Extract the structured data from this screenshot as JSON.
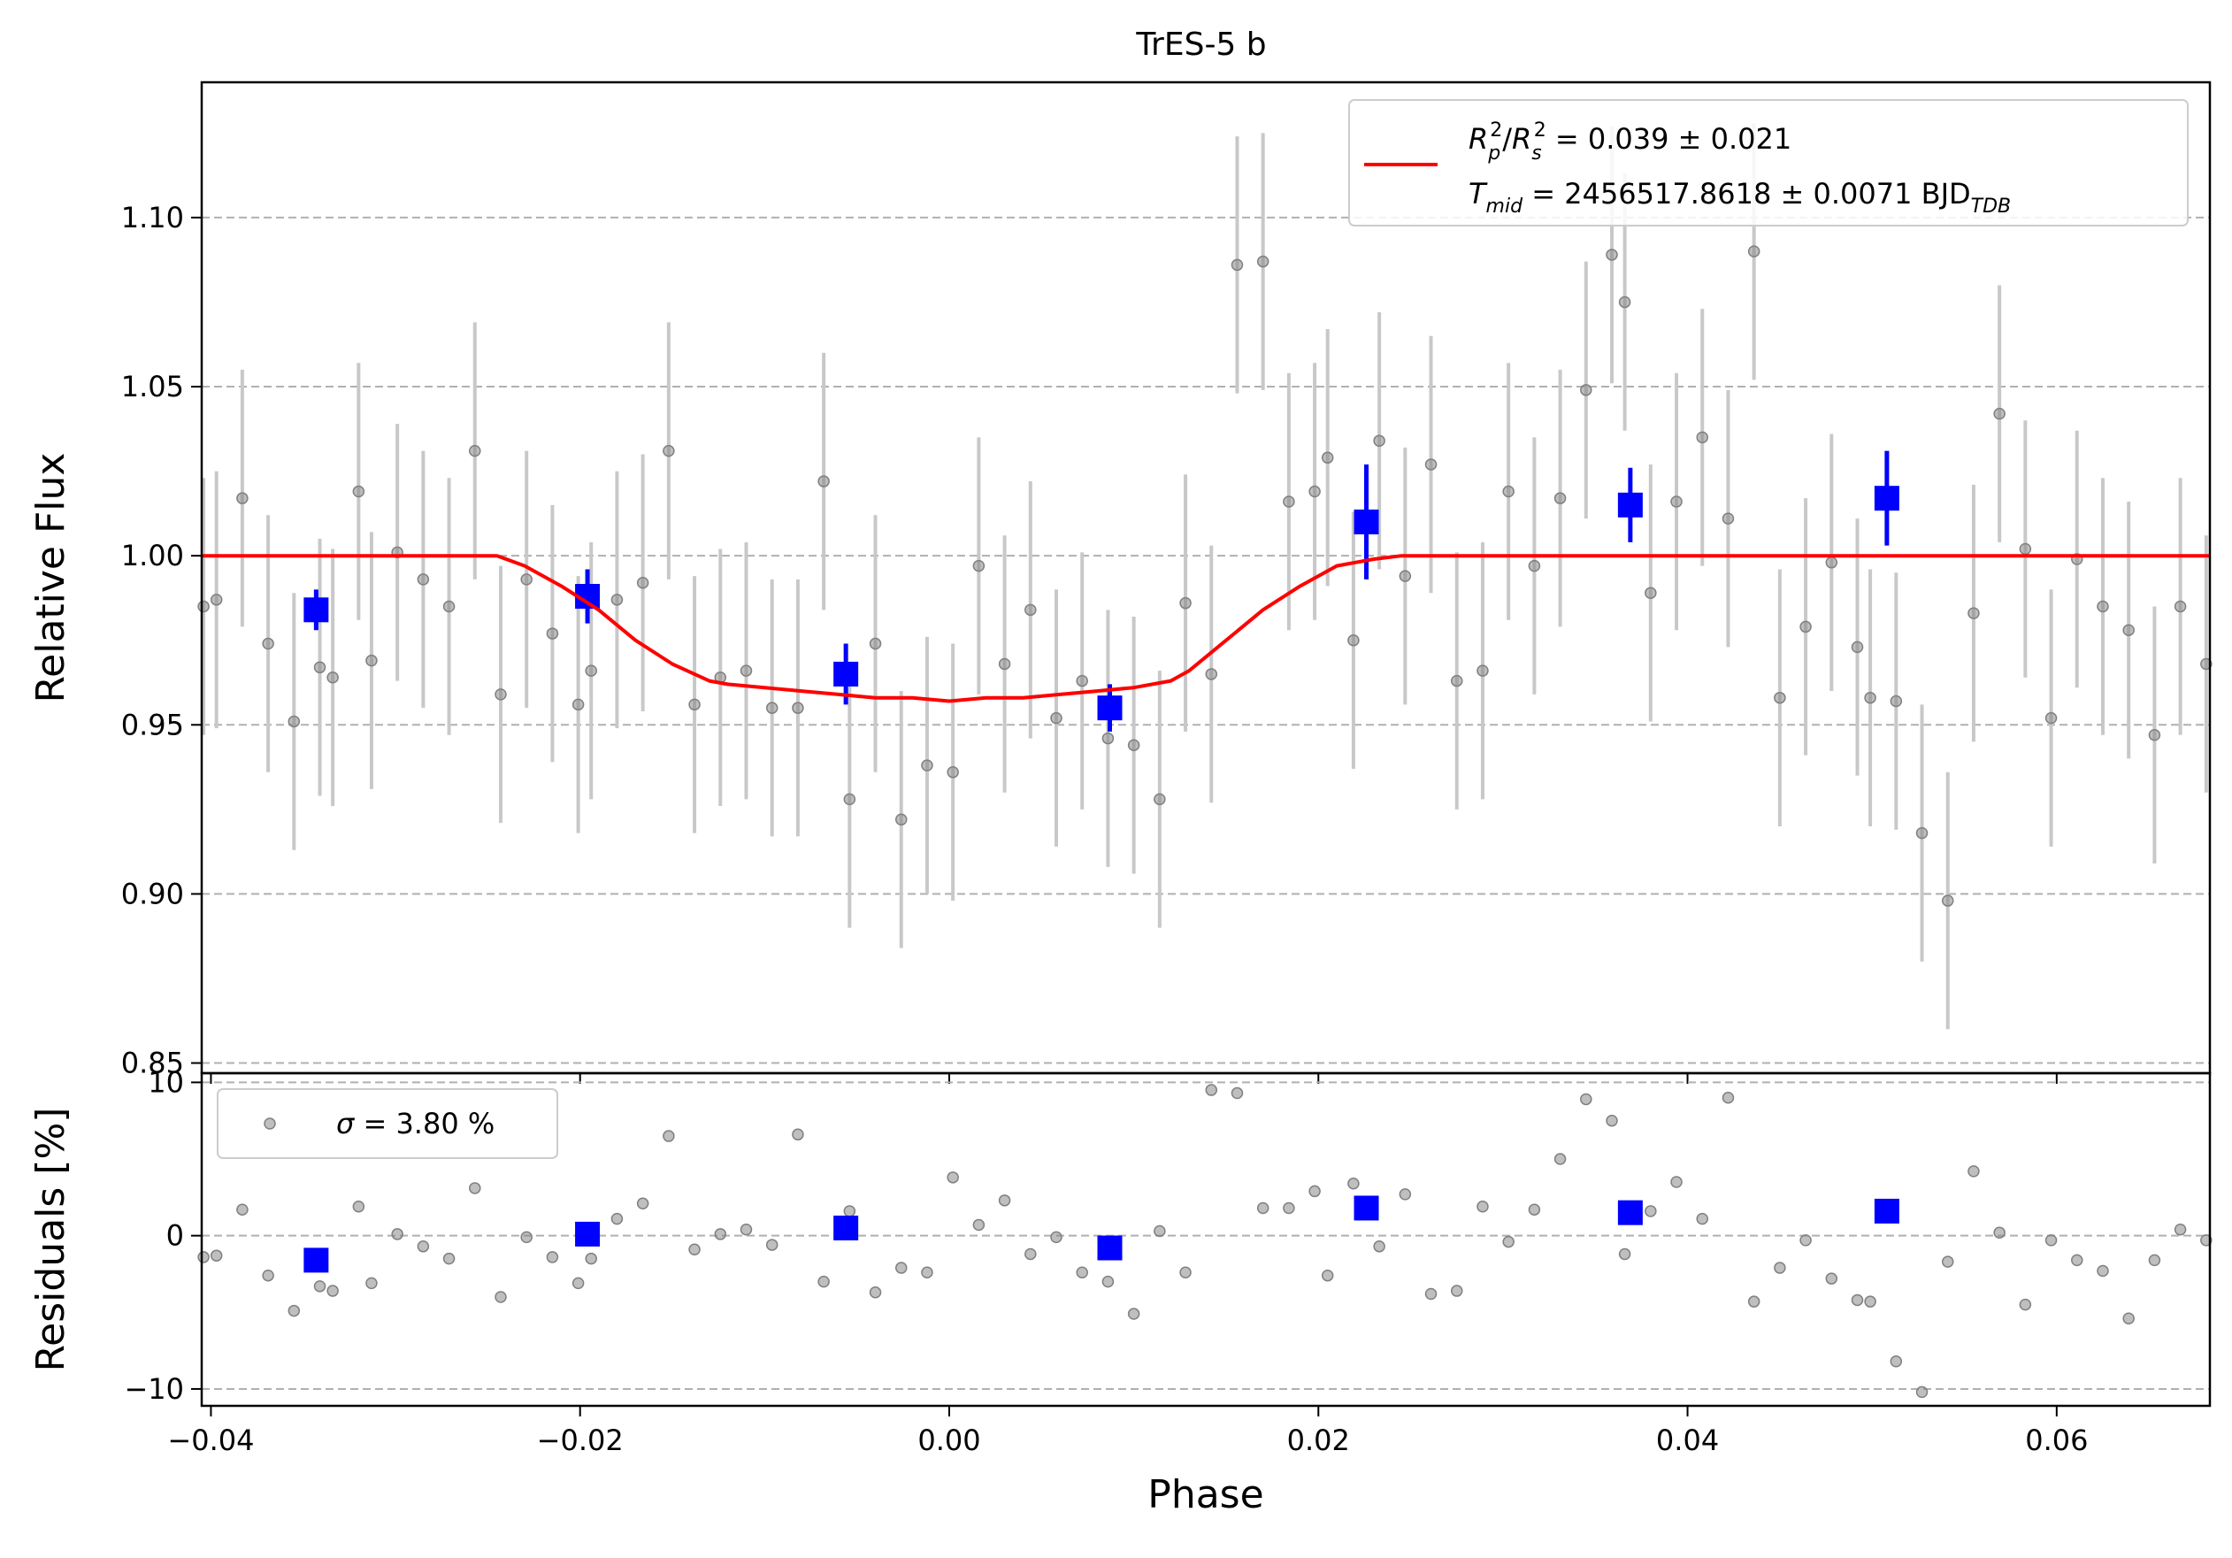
{
  "chart_data": [
    {
      "type": "scatter",
      "title": "TrES-5 b",
      "xlabel": "",
      "ylabel": "Relative Flux",
      "xlim": [
        -0.0405,
        0.0683
      ],
      "ylim": [
        0.847,
        1.14
      ],
      "xticks": [
        -0.04,
        -0.02,
        0.0,
        0.02,
        0.04,
        0.06
      ],
      "xtick_labels": [
        "",
        "",
        "",
        "",
        "",
        ""
      ],
      "yticks": [
        0.85,
        0.9,
        0.95,
        1.0,
        1.05,
        1.1
      ],
      "ytick_labels": [
        "0.85",
        "0.90",
        "0.95",
        "1.00",
        "1.05",
        "1.10"
      ],
      "grid": "horizontal dashed",
      "legend_position": "top-right",
      "colors": {
        "data": "#808080",
        "errorbar": "#c8c8c8",
        "binned": "#0000ff",
        "model": "#ff0000",
        "grid": "#b0b0b0"
      },
      "legend": {
        "line1_main": "R",
        "line1_rest": " = 0.039 ± 0.021",
        "line2_main": "T",
        "line2_sub": "mid",
        "line2_rest": " = 2456517.8618 ± 0.0071 BJD",
        "line2_unit_sub": "TDB"
      },
      "series": [
        {
          "kind": "data",
          "x": [
            -0.0404,
            -0.0397,
            -0.0383,
            -0.0369,
            -0.0355,
            -0.0341,
            -0.0334,
            -0.032,
            -0.0313,
            -0.0299,
            -0.0285,
            -0.0271,
            -0.0257,
            -0.0243,
            -0.0229,
            -0.0215,
            -0.0201,
            -0.0194,
            -0.018,
            -0.0166,
            -0.0152,
            -0.0138,
            -0.0124,
            -0.011,
            -0.0096,
            -0.0082,
            -0.0068,
            -0.0054,
            -0.004,
            -0.0026,
            -0.0012,
            0.0002,
            0.0016,
            0.003,
            0.0044,
            0.0058,
            0.0072,
            0.0086,
            0.01,
            0.0114,
            0.0128,
            0.0142,
            0.0156,
            0.017,
            0.0184,
            0.0198,
            0.0205,
            0.0219,
            0.0233,
            0.0247,
            0.0261,
            0.0275,
            0.0289,
            0.0303,
            0.0317,
            0.0331,
            0.0345,
            0.0359,
            0.0366,
            0.038,
            0.0394,
            0.0408,
            0.0422,
            0.0436,
            0.045,
            0.0464,
            0.0478,
            0.0492,
            0.0499,
            0.0513,
            0.0527,
            0.0541,
            0.0555,
            0.0569,
            0.0583,
            0.0597,
            0.0611,
            0.0625,
            0.0639,
            0.0653,
            0.0667,
            0.0681
          ],
          "y": [
            0.985,
            0.987,
            1.017,
            0.974,
            0.951,
            0.967,
            0.964,
            1.019,
            0.969,
            1.001,
            0.993,
            0.985,
            1.031,
            0.959,
            0.993,
            0.977,
            0.956,
            0.966,
            0.987,
            0.992,
            1.031,
            0.956,
            0.964,
            0.966,
            0.955,
            0.955,
            1.022,
            0.928,
            0.974,
            0.922,
            0.938,
            0.936,
            0.997,
            0.968,
            0.984,
            0.952,
            0.963,
            0.946,
            0.944,
            0.928,
            0.986,
            0.965,
            1.086,
            1.087,
            1.016,
            1.019,
            1.029,
            0.975,
            1.034,
            0.994,
            1.027,
            0.963,
            0.966,
            1.019,
            0.997,
            1.017,
            1.049,
            1.089,
            1.075,
            0.989,
            1.016,
            1.035,
            1.011,
            1.09,
            0.958,
            0.979,
            0.998,
            0.973,
            0.958,
            0.957,
            0.918,
            0.898,
            0.983,
            1.042,
            1.002,
            0.952,
            0.999,
            0.985,
            0.978,
            0.947,
            0.985,
            0.968
          ],
          "yerr": [
            0.038,
            0.038,
            0.038,
            0.038,
            0.038,
            0.038,
            0.038,
            0.038,
            0.038,
            0.038,
            0.038,
            0.038,
            0.038,
            0.038,
            0.038,
            0.038,
            0.038,
            0.038,
            0.038,
            0.038,
            0.038,
            0.038,
            0.038,
            0.038,
            0.038,
            0.038,
            0.038,
            0.038,
            0.038,
            0.038,
            0.038,
            0.038,
            0.038,
            0.038,
            0.038,
            0.038,
            0.038,
            0.038,
            0.038,
            0.038,
            0.038,
            0.038,
            0.038,
            0.038,
            0.038,
            0.038,
            0.038,
            0.038,
            0.038,
            0.038,
            0.038,
            0.038,
            0.038,
            0.038,
            0.038,
            0.038,
            0.038,
            0.038,
            0.038,
            0.038,
            0.038,
            0.038,
            0.038,
            0.038,
            0.038,
            0.038,
            0.038,
            0.038,
            0.038,
            0.038,
            0.038,
            0.038,
            0.038,
            0.038,
            0.038,
            0.038,
            0.038,
            0.038,
            0.038,
            0.038,
            0.038,
            0.038
          ]
        },
        {
          "kind": "binned",
          "x": [
            -0.0343,
            -0.0196,
            -0.0056,
            0.0087,
            0.0226,
            0.0369,
            0.0508
          ],
          "y": [
            0.984,
            0.988,
            0.965,
            0.955,
            1.01,
            1.015,
            1.017
          ],
          "yerr": [
            0.006,
            0.008,
            0.009,
            0.007,
            0.017,
            0.011,
            0.014
          ]
        },
        {
          "kind": "model",
          "x": [
            -0.0405,
            -0.0245,
            -0.023,
            -0.021,
            -0.019,
            -0.017,
            -0.015,
            -0.013,
            -0.012,
            -0.01,
            -0.008,
            -0.006,
            -0.004,
            -0.002,
            0.0,
            0.002,
            0.004,
            0.006,
            0.008,
            0.01,
            0.012,
            0.013,
            0.015,
            0.017,
            0.019,
            0.021,
            0.023,
            0.0245,
            0.0683
          ],
          "y": [
            1.0,
            1.0,
            0.997,
            0.991,
            0.984,
            0.975,
            0.968,
            0.963,
            0.962,
            0.961,
            0.96,
            0.959,
            0.958,
            0.958,
            0.957,
            0.958,
            0.958,
            0.959,
            0.96,
            0.961,
            0.963,
            0.966,
            0.975,
            0.984,
            0.991,
            0.997,
            0.999,
            1.0,
            1.0
          ]
        }
      ]
    },
    {
      "type": "scatter",
      "title": "",
      "xlabel": "Phase",
      "ylabel": "Residuals [%]",
      "xlim": [
        -0.0405,
        0.0683
      ],
      "ylim": [
        -11.1,
        10.6
      ],
      "xticks": [
        -0.04,
        -0.02,
        0.0,
        0.02,
        0.04,
        0.06
      ],
      "xtick_labels": [
        "−0.04",
        "−0.02",
        "0.00",
        "0.02",
        "0.04",
        "0.06"
      ],
      "yticks": [
        -10,
        0,
        10
      ],
      "ytick_labels": [
        "−10",
        "0",
        "10"
      ],
      "grid": "horizontal dashed",
      "legend_position": "top-left",
      "legend": {
        "label_main": "σ",
        "label_rest": " = 3.80 %"
      },
      "series": [
        {
          "kind": "data",
          "x": [
            -0.0404,
            -0.0397,
            -0.0383,
            -0.0369,
            -0.0355,
            -0.0341,
            -0.0334,
            -0.032,
            -0.0313,
            -0.0299,
            -0.0285,
            -0.0271,
            -0.0257,
            -0.0243,
            -0.0229,
            -0.0215,
            -0.0201,
            -0.0194,
            -0.018,
            -0.0166,
            -0.0152,
            -0.0138,
            -0.0124,
            -0.011,
            -0.0096,
            -0.0082,
            -0.0068,
            -0.0054,
            -0.004,
            -0.0026,
            -0.0012,
            0.0002,
            0.0016,
            0.003,
            0.0044,
            0.0058,
            0.0072,
            0.0086,
            0.01,
            0.0114,
            0.0128,
            0.0142,
            0.0156,
            0.017,
            0.0184,
            0.0198,
            0.0205,
            0.0219,
            0.0233,
            0.0247,
            0.0261,
            0.0275,
            0.0289,
            0.0303,
            0.0317,
            0.0331,
            0.0345,
            0.0359,
            0.0366,
            0.038,
            0.0394,
            0.0408,
            0.0422,
            0.0436,
            0.045,
            0.0464,
            0.0478,
            0.0492,
            0.0499,
            0.0513,
            0.0527,
            0.0541,
            0.0555,
            0.0569,
            0.0583,
            0.0597,
            0.0611,
            0.0625,
            0.0639,
            0.0653,
            0.0667,
            0.0681
          ],
          "y": [
            -1.4,
            -1.3,
            1.7,
            -2.6,
            -4.9,
            -3.3,
            -3.6,
            1.9,
            -3.1,
            0.1,
            -0.7,
            -1.5,
            3.1,
            -4.0,
            -0.1,
            -1.4,
            -3.1,
            -1.5,
            1.1,
            2.1,
            6.5,
            -0.9,
            0.1,
            0.4,
            -0.6,
            6.6,
            -3.0,
            1.6,
            -3.7,
            -2.1,
            -2.4,
            3.8,
            0.7,
            2.3,
            -1.2,
            -0.1,
            -2.4,
            -3.0,
            -5.1,
            0.3,
            -2.4,
            9.5,
            9.3,
            1.8,
            1.8,
            2.9,
            -2.6,
            3.4,
            -0.7,
            2.7,
            -3.8,
            -3.6,
            1.9,
            -0.4,
            1.7,
            5.0,
            8.9,
            7.5,
            -1.2,
            1.6,
            3.5,
            1.1,
            9.0,
            -4.3,
            -2.1,
            -0.3,
            -2.8,
            -4.2,
            -4.3,
            -8.2,
            -10.2,
            -1.7,
            4.2,
            0.2,
            -4.5,
            -0.3,
            -1.6,
            -2.3,
            -5.4,
            -1.6,
            0.4,
            -0.3
          ]
        },
        {
          "kind": "binned",
          "x": [
            -0.0343,
            -0.0196,
            -0.0056,
            0.0087,
            0.0226,
            0.0369,
            0.0508
          ],
          "y": [
            -1.6,
            0.1,
            0.5,
            -0.8,
            1.8,
            1.5,
            1.6
          ]
        }
      ]
    }
  ]
}
